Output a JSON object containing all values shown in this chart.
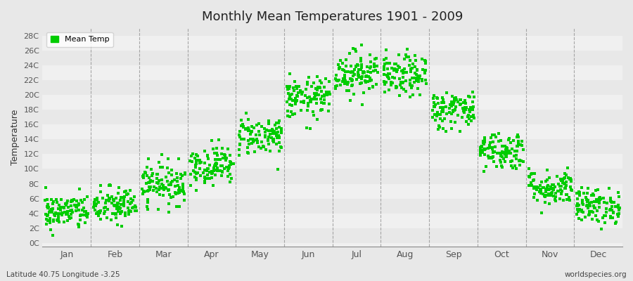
{
  "title": "Monthly Mean Temperatures 1901 - 2009",
  "ylabel": "Temperature",
  "yticks": [
    0,
    2,
    4,
    6,
    8,
    10,
    12,
    14,
    16,
    18,
    20,
    22,
    24,
    26,
    28
  ],
  "ytick_labels": [
    "0C",
    "2C",
    "4C",
    "6C",
    "8C",
    "10C",
    "12C",
    "14C",
    "16C",
    "18C",
    "20C",
    "22C",
    "24C",
    "26C",
    "28C"
  ],
  "ylim": [
    -0.5,
    29
  ],
  "months": [
    "Jan",
    "Feb",
    "Mar",
    "Apr",
    "May",
    "Jun",
    "Jul",
    "Aug",
    "Sep",
    "Oct",
    "Nov",
    "Dec"
  ],
  "dot_color": "#00cc00",
  "dot_size": 6,
  "bg_color": "#e8e8e8",
  "band_colors": [
    "#e8e8e8",
    "#f0f0f0"
  ],
  "grid_color": "#888888",
  "legend_label": "Mean Temp",
  "bottom_left": "Latitude 40.75 Longitude -3.25",
  "bottom_right": "worldspecies.org",
  "mean_temps": [
    4.2,
    5.0,
    8.0,
    10.5,
    14.5,
    19.5,
    23.0,
    22.5,
    18.0,
    12.5,
    7.5,
    5.0
  ],
  "std_temps": [
    1.2,
    1.3,
    1.4,
    1.3,
    1.3,
    1.4,
    1.5,
    1.4,
    1.3,
    1.3,
    1.2,
    1.2
  ],
  "n_years": 109,
  "random_seed": 42
}
